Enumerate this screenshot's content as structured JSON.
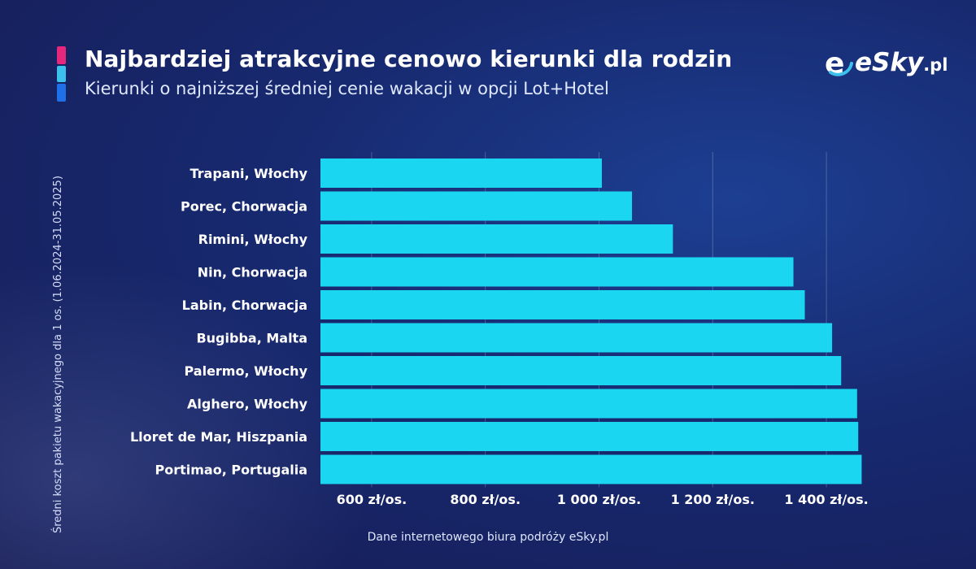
{
  "header": {
    "title": "Najbardziej atrakcyjne cenowo kierunki dla rodzin",
    "subtitle": "Kierunki o najniższej średniej cenie wakacji w opcji Lot+Hotel",
    "accent_colors": [
      "#e5287c",
      "#3cc1ec",
      "#1e6fe8"
    ]
  },
  "logo": {
    "name": "eSky",
    "suffix": ".pl",
    "icon": "esky-logo-icon"
  },
  "footer": {
    "source": "Dane internetowego biura podróży eSky.pl"
  },
  "chart_data": {
    "type": "bar",
    "orientation": "horizontal",
    "title": "Najbardziej atrakcyjne cenowo kierunki dla rodzin",
    "subtitle": "Kierunki o najniższej średniej cenie wakacji w opcji Lot+Hotel",
    "ylabel": "Średni koszt pakietu wakacyjnego dla 1 os. (1.06.2024-31.05.2025)",
    "xlabel": "",
    "categories": [
      "Trapani, Włochy",
      "Porec, Chorwacja",
      "Rimini, Włochy",
      "Nin, Chorwacja",
      "Labin, Chorwacja",
      "Bugibba, Malta",
      "Palermo, Włochy",
      "Alghero, Włochy",
      "Lloret de Mar, Hiszpania",
      "Portimao, Portugalia"
    ],
    "values": [
      1005,
      1058,
      1130,
      1342,
      1362,
      1410,
      1426,
      1454,
      1456,
      1462
    ],
    "xlim": [
      510,
      1470
    ],
    "ticks": [
      600,
      800,
      1000,
      1200,
      1400
    ],
    "tick_labels": [
      "600 zł/os.",
      "800 zł/os.",
      "1 000 zł/os.",
      "1 200 zł/os.",
      "1 400 zł/os."
    ],
    "bar_color": "#1ad6f0",
    "grid": true
  }
}
